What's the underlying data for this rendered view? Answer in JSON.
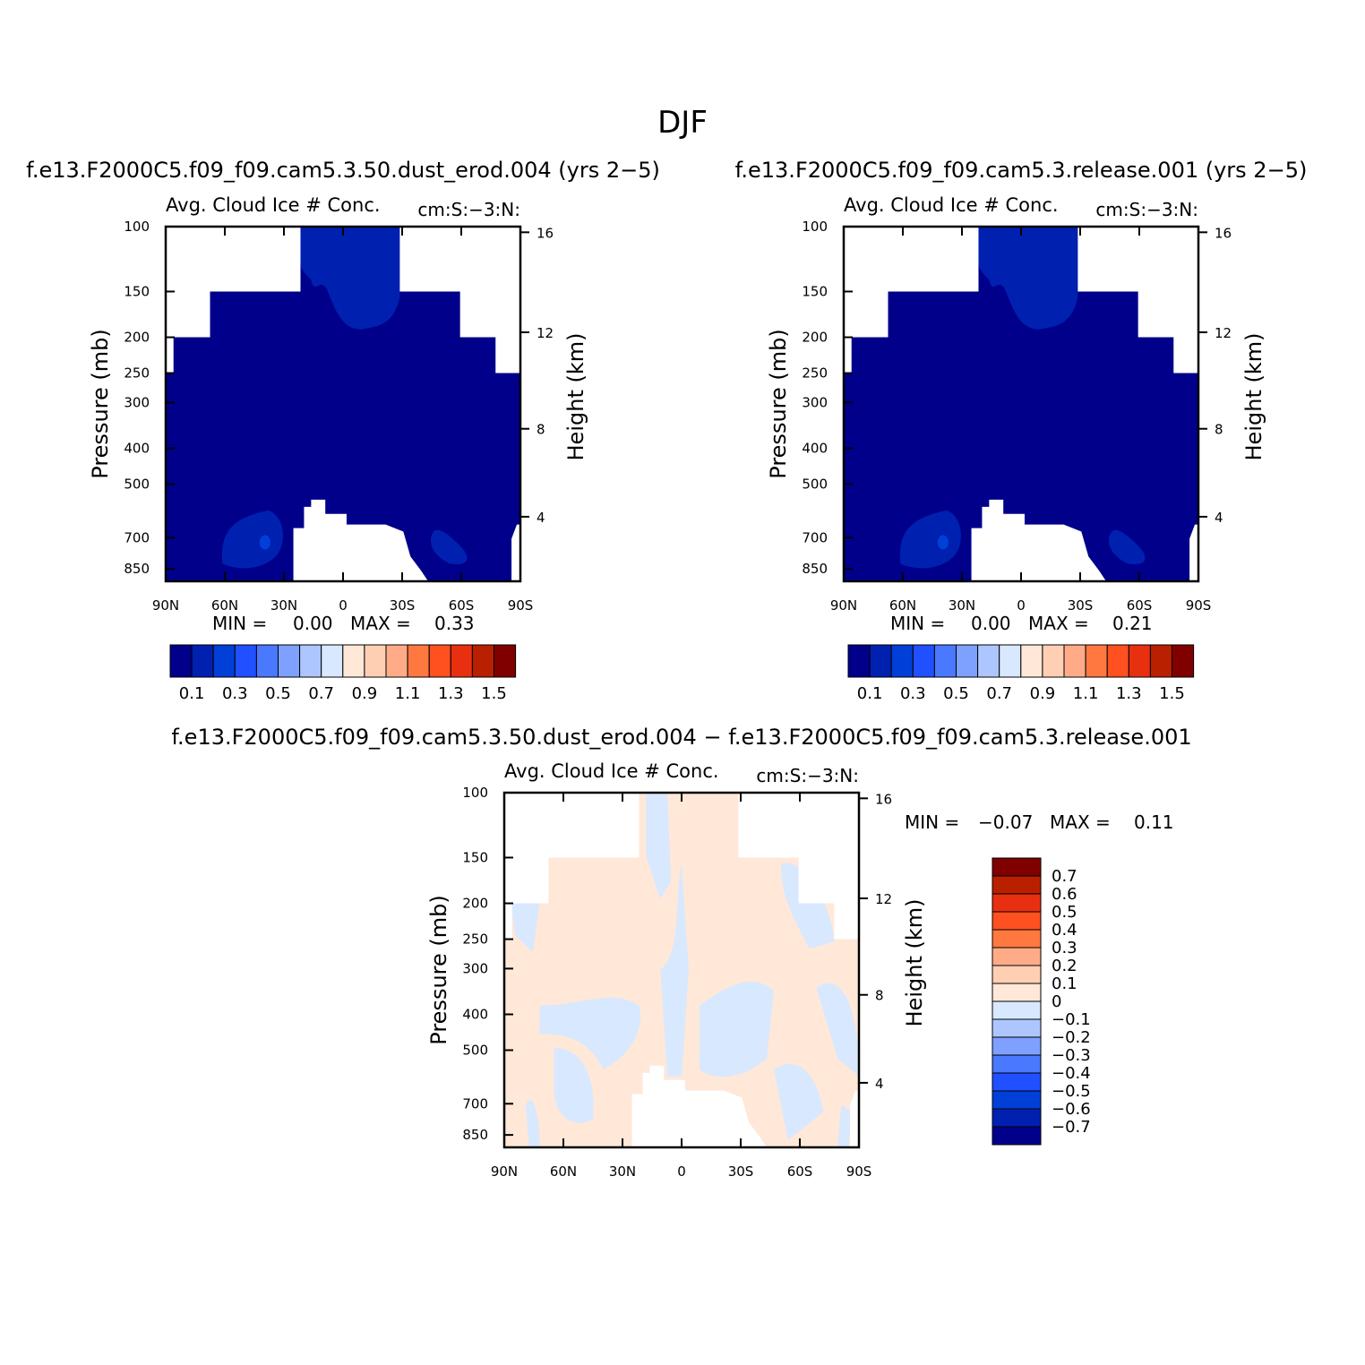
{
  "figure": {
    "title": "DJF"
  },
  "colors": {
    "abs_scale": [
      "#00008b",
      "#0020b0",
      "#0040d8",
      "#2050ff",
      "#4a78ff",
      "#7ea0ff",
      "#aec6ff",
      "#d8e8ff",
      "#ffe8d8",
      "#ffcfb4",
      "#ffab88",
      "#ff7840",
      "#ff5020",
      "#e83010",
      "#b82000",
      "#800000"
    ],
    "diff_scale": [
      "#800000",
      "#b82000",
      "#e83010",
      "#ff5020",
      "#ff7840",
      "#ffab88",
      "#ffcfb4",
      "#ffe8d8",
      "#d8e8ff",
      "#aec6ff",
      "#7ea0ff",
      "#4a78ff",
      "#2050ff",
      "#0040d8",
      "#0020b0",
      "#00008b"
    ]
  },
  "chart_data": [
    {
      "type": "heatmap",
      "case_title": "f.e13.F2000C5.f09_f09.cam5.3.50.dust_erod.004 (yrs 2−5)",
      "variable": "Avg. Cloud Ice # Conc.",
      "units": "cm:S:−3:N:",
      "xlabel": "",
      "ylabel": "Pressure (mb)",
      "ylabel_right": "Height (km)",
      "x_ticks": [
        "90N",
        "60N",
        "30N",
        "0",
        "30S",
        "60S",
        "90S"
      ],
      "y_ticks": [
        "100",
        "150",
        "200",
        "250",
        "300",
        "400",
        "500",
        "700",
        "850"
      ],
      "y_ticks_right": [
        "16",
        "12",
        "8",
        "4"
      ],
      "stats": {
        "min_label": "MIN =",
        "min": "0.00",
        "max_label": "MAX =",
        "max": "0.33"
      },
      "colorbar_labels": [
        "0.1",
        "0.3",
        "0.5",
        "0.7",
        "0.9",
        "1.1",
        "1.3",
        "1.5"
      ],
      "data_range": [
        0.0,
        0.33
      ]
    },
    {
      "type": "heatmap",
      "case_title": "f.e13.F2000C5.f09_f09.cam5.3.release.001 (yrs 2−5)",
      "variable": "Avg. Cloud Ice # Conc.",
      "units": "cm:S:−3:N:",
      "xlabel": "",
      "ylabel": "Pressure (mb)",
      "ylabel_right": "Height (km)",
      "x_ticks": [
        "90N",
        "60N",
        "30N",
        "0",
        "30S",
        "60S",
        "90S"
      ],
      "y_ticks": [
        "100",
        "150",
        "200",
        "250",
        "300",
        "400",
        "500",
        "700",
        "850"
      ],
      "y_ticks_right": [
        "16",
        "12",
        "8",
        "4"
      ],
      "stats": {
        "min_label": "MIN =",
        "min": "0.00",
        "max_label": "MAX =",
        "max": "0.21"
      },
      "colorbar_labels": [
        "0.1",
        "0.3",
        "0.5",
        "0.7",
        "0.9",
        "1.1",
        "1.3",
        "1.5"
      ],
      "data_range": [
        0.0,
        0.21
      ]
    },
    {
      "type": "heatmap",
      "case_title": "f.e13.F2000C5.f09_f09.cam5.3.50.dust_erod.004 − f.e13.F2000C5.f09_f09.cam5.3.release.001",
      "variable": "Avg. Cloud Ice # Conc.",
      "units": "cm:S:−3:N:",
      "xlabel": "",
      "ylabel": "Pressure (mb)",
      "ylabel_right": "Height (km)",
      "x_ticks": [
        "90N",
        "60N",
        "30N",
        "0",
        "30S",
        "60S",
        "90S"
      ],
      "y_ticks": [
        "100",
        "150",
        "200",
        "250",
        "300",
        "400",
        "500",
        "700",
        "850"
      ],
      "y_ticks_right": [
        "16",
        "12",
        "8",
        "4"
      ],
      "stats": {
        "min_label": "MIN =",
        "min": "−0.07",
        "max_label": "MAX =",
        "max": "0.11"
      },
      "colorbar_labels": [
        "0.7",
        "0.6",
        "0.5",
        "0.4",
        "0.3",
        "0.2",
        "0.1",
        "0",
        "−0.1",
        "−0.2",
        "−0.3",
        "−0.4",
        "−0.5",
        "−0.6",
        "−0.7"
      ],
      "data_range": [
        -0.07,
        0.11
      ]
    }
  ]
}
